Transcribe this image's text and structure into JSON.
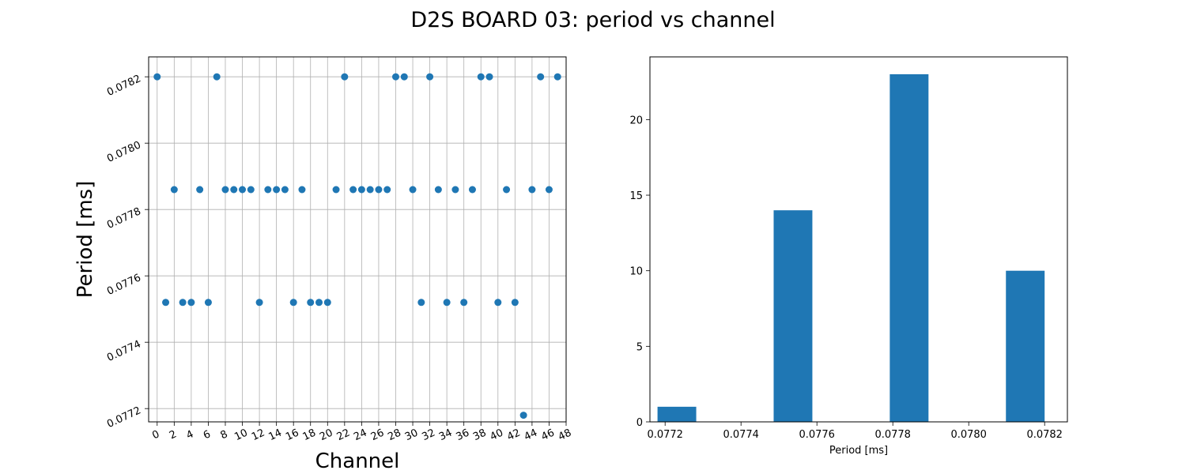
{
  "figure_title": "D2S BOARD 03: period vs channel",
  "chart_data": [
    {
      "type": "scatter",
      "xlabel": "Channel",
      "ylabel": "Period [ms]",
      "xlim": [
        -1,
        48
      ],
      "ylim": [
        0.07716,
        0.07826
      ],
      "xticks": [
        "0",
        "2",
        "4",
        "6",
        "8",
        "10",
        "12",
        "14",
        "16",
        "18",
        "20",
        "22",
        "24",
        "26",
        "28",
        "30",
        "32",
        "34",
        "36",
        "38",
        "40",
        "42",
        "44",
        "46",
        "48"
      ],
      "yticks": [
        "0.0772",
        "0.0774",
        "0.0776",
        "0.0778",
        "0.0780",
        "0.0782"
      ],
      "grid": true,
      "color": "#1f77b4",
      "x": [
        0,
        1,
        2,
        3,
        4,
        5,
        6,
        7,
        8,
        9,
        10,
        11,
        12,
        13,
        14,
        15,
        16,
        17,
        18,
        19,
        20,
        21,
        22,
        23,
        24,
        25,
        26,
        27,
        28,
        29,
        30,
        31,
        32,
        33,
        34,
        35,
        36,
        37,
        38,
        39,
        40,
        41,
        42,
        43,
        44,
        45,
        46,
        47
      ],
      "y": [
        0.0782,
        0.07752,
        0.07786,
        0.07752,
        0.07752,
        0.07786,
        0.07752,
        0.0782,
        0.07786,
        0.07786,
        0.07786,
        0.07786,
        0.07752,
        0.07786,
        0.07786,
        0.07786,
        0.07752,
        0.07786,
        0.07752,
        0.07752,
        0.07752,
        0.07786,
        0.0782,
        0.07786,
        0.07786,
        0.07786,
        0.07786,
        0.07786,
        0.0782,
        0.0782,
        0.07786,
        0.07752,
        0.0782,
        0.07786,
        0.07752,
        0.07786,
        0.07752,
        0.07786,
        0.0782,
        0.0782,
        0.07752,
        0.07786,
        0.07752,
        0.07718,
        0.07786,
        0.0782,
        0.07786,
        0.0782
      ]
    },
    {
      "type": "bar",
      "subtype": "histogram",
      "xlabel": "Period [ms]",
      "ylabel": "",
      "xlim": [
        0.07716,
        0.07826
      ],
      "ylim": [
        0,
        24.15
      ],
      "xticks": [
        "0.0772",
        "0.0774",
        "0.0776",
        "0.0778",
        "0.0780",
        "0.0782"
      ],
      "yticks": [
        "0",
        "5",
        "10",
        "15",
        "20"
      ],
      "grid": false,
      "color": "#1f77b4",
      "bins": [
        {
          "start": 0.07718,
          "end": 0.077282,
          "count": 1
        },
        {
          "start": 0.077282,
          "end": 0.077384,
          "count": 0
        },
        {
          "start": 0.077384,
          "end": 0.077486,
          "count": 0
        },
        {
          "start": 0.077486,
          "end": 0.077588,
          "count": 14
        },
        {
          "start": 0.077588,
          "end": 0.07769,
          "count": 0
        },
        {
          "start": 0.07769,
          "end": 0.077792,
          "count": 0
        },
        {
          "start": 0.077792,
          "end": 0.077894,
          "count": 23
        },
        {
          "start": 0.077894,
          "end": 0.077996,
          "count": 0
        },
        {
          "start": 0.077996,
          "end": 0.078098,
          "count": 0
        },
        {
          "start": 0.078098,
          "end": 0.0782,
          "count": 10
        }
      ]
    }
  ]
}
